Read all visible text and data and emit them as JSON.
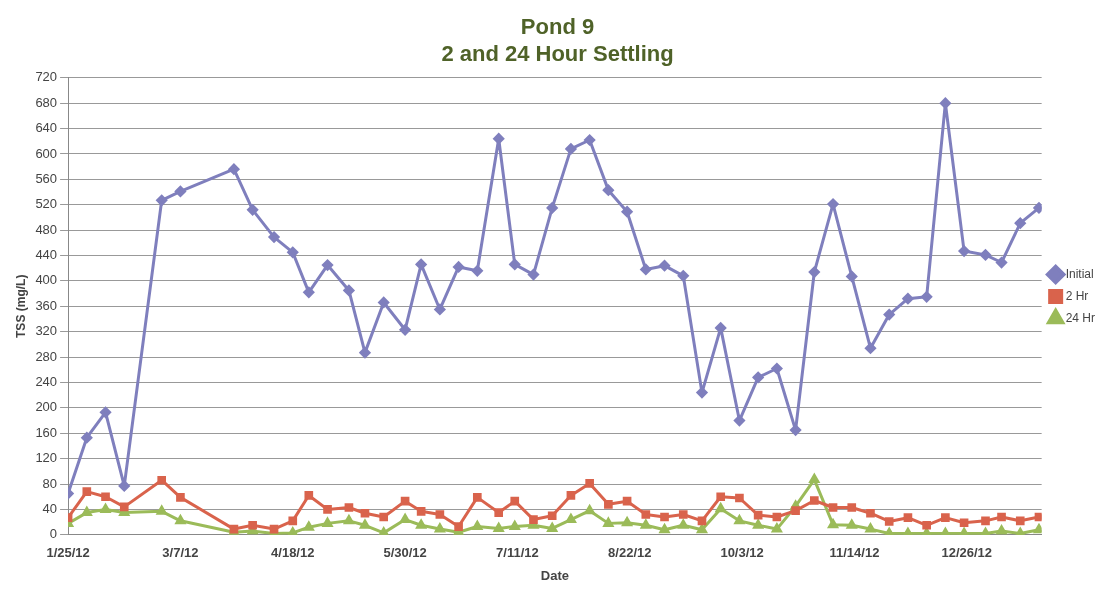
{
  "chart_data": {
    "type": "line",
    "title": "Pond 9\n2 and 24 Hour Settling",
    "xlabel": "Date",
    "ylabel": "TSS (mg/L)",
    "x": [
      "2012-01-25",
      "2012-02-01",
      "2012-02-08",
      "2012-02-15",
      "2012-02-29",
      "2012-03-07",
      "2012-03-27",
      "2012-04-03",
      "2012-04-11",
      "2012-04-18",
      "2012-04-24",
      "2012-05-01",
      "2012-05-09",
      "2012-05-15",
      "2012-05-22",
      "2012-05-30",
      "2012-06-05",
      "2012-06-12",
      "2012-06-19",
      "2012-06-26",
      "2012-07-04",
      "2012-07-10",
      "2012-07-17",
      "2012-07-24",
      "2012-07-31",
      "2012-08-07",
      "2012-08-14",
      "2012-08-21",
      "2012-08-28",
      "2012-09-04",
      "2012-09-11",
      "2012-09-18",
      "2012-09-25",
      "2012-10-02",
      "2012-10-09",
      "2012-10-16",
      "2012-10-23",
      "2012-10-30",
      "2012-11-06",
      "2012-11-13",
      "2012-11-20",
      "2012-11-27",
      "2012-12-04",
      "2012-12-11",
      "2012-12-18",
      "2012-12-25",
      "2013-01-02",
      "2013-01-08",
      "2013-01-15",
      "2013-01-22"
    ],
    "series": [
      {
        "name": "Initial",
        "color": "#7f7fbd",
        "marker": "diamond",
        "values": [
          65,
          153,
          193,
          77,
          527,
          541,
          576,
          512,
          469,
          445,
          382,
          425,
          385,
          287,
          366,
          323,
          426,
          355,
          422,
          416,
          624,
          426,
          410,
          515,
          608,
          622,
          543,
          509,
          418,
          424,
          408,
          224,
          326,
          180,
          248,
          262,
          165,
          414,
          521,
          407,
          294,
          347,
          372,
          375,
          680,
          447,
          441,
          429,
          491,
          515
        ]
      },
      {
        "name": "2 Hr",
        "color": "#d9634c",
        "marker": "square",
        "values": [
          27,
          68,
          60,
          44,
          86,
          59,
          9,
          15,
          9,
          22,
          62,
          40,
          43,
          34,
          28,
          53,
          37,
          32,
          13,
          59,
          35,
          53,
          24,
          30,
          62,
          81,
          48,
          53,
          32,
          28,
          32,
          22,
          60,
          58,
          31,
          28,
          38,
          54,
          43,
          43,
          34,
          21,
          27,
          15,
          27,
          19,
          22,
          28,
          22,
          28
        ]
      },
      {
        "name": "24 Hr",
        "color": "#9bbb59",
        "marker": "triangle",
        "values": [
          18,
          35,
          40,
          35,
          37,
          22,
          4,
          6,
          2,
          3,
          12,
          18,
          22,
          15,
          3,
          24,
          15,
          9,
          4,
          13,
          10,
          13,
          15,
          10,
          24,
          38,
          18,
          19,
          15,
          8,
          15,
          8,
          41,
          22,
          15,
          9,
          45,
          87,
          16,
          15,
          9,
          2,
          2,
          2,
          2,
          2,
          2,
          6,
          2,
          8
        ]
      }
    ],
    "xlim": [
      "2012-01-25",
      "2013-01-23"
    ],
    "xticks": [
      {
        "value": "2012-01-25",
        "label": "1/25/12"
      },
      {
        "value": "2012-03-07",
        "label": "3/7/12"
      },
      {
        "value": "2012-04-18",
        "label": "4/18/12"
      },
      {
        "value": "2012-05-30",
        "label": "5/30/12"
      },
      {
        "value": "2012-07-11",
        "label": "7/11/12"
      },
      {
        "value": "2012-08-22",
        "label": "8/22/12"
      },
      {
        "value": "2012-10-03",
        "label": "10/3/12"
      },
      {
        "value": "2012-11-14",
        "label": "11/14/12"
      },
      {
        "value": "2012-12-26",
        "label": "12/26/12"
      }
    ],
    "ylim": [
      0,
      720
    ],
    "yticks": [
      0,
      40,
      80,
      120,
      160,
      200,
      240,
      280,
      320,
      360,
      400,
      440,
      480,
      520,
      560,
      600,
      640,
      680,
      720
    ],
    "grid": "y",
    "legend": "right",
    "line_style": "solid"
  }
}
